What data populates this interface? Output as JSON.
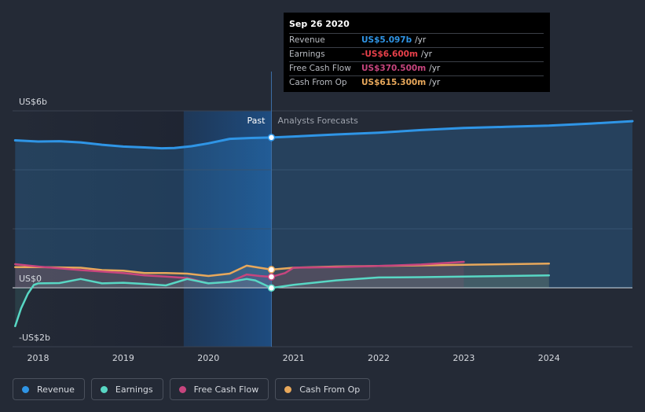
{
  "chart_data": {
    "type": "line",
    "x_axis": {
      "ticks": [
        "2018",
        "2019",
        "2020",
        "2021",
        "2022",
        "2023",
        "2024"
      ],
      "range": [
        2017.7,
        2024.98
      ]
    },
    "y_axis": {
      "range": [
        -2,
        6
      ],
      "unit": "US$ billions",
      "tick_labels": [
        {
          "value": 6,
          "label": "US$6b"
        },
        {
          "value": 0,
          "label": "US$0"
        },
        {
          "value": -2,
          "label": "-US$2b"
        }
      ]
    },
    "past_label": "Past",
    "forecast_label": "Analysts Forecasts",
    "divider_x": 2020.74,
    "series": [
      {
        "name": "Revenue",
        "color": "#2f95e6",
        "fill": true,
        "points": [
          [
            2017.73,
            5.0
          ],
          [
            2018.0,
            4.96
          ],
          [
            2018.25,
            4.97
          ],
          [
            2018.5,
            4.93
          ],
          [
            2018.75,
            4.85
          ],
          [
            2019.0,
            4.79
          ],
          [
            2019.25,
            4.76
          ],
          [
            2019.45,
            4.73
          ],
          [
            2019.6,
            4.74
          ],
          [
            2019.8,
            4.8
          ],
          [
            2020.0,
            4.9
          ],
          [
            2020.25,
            5.05
          ],
          [
            2020.5,
            5.08
          ],
          [
            2020.74,
            5.097
          ],
          [
            2021.0,
            5.13
          ],
          [
            2021.5,
            5.2
          ],
          [
            2022.0,
            5.26
          ],
          [
            2022.5,
            5.35
          ],
          [
            2023.0,
            5.42
          ],
          [
            2023.5,
            5.46
          ],
          [
            2024.0,
            5.5
          ],
          [
            2024.5,
            5.57
          ],
          [
            2024.98,
            5.65
          ]
        ]
      },
      {
        "name": "Earnings",
        "color": "#58d7c4",
        "fill": true,
        "points": [
          [
            2017.73,
            -1.3
          ],
          [
            2017.8,
            -0.7
          ],
          [
            2017.88,
            -0.2
          ],
          [
            2017.95,
            0.1
          ],
          [
            2018.0,
            0.15
          ],
          [
            2018.25,
            0.16
          ],
          [
            2018.5,
            0.3
          ],
          [
            2018.75,
            0.15
          ],
          [
            2019.0,
            0.17
          ],
          [
            2019.25,
            0.13
          ],
          [
            2019.5,
            0.08
          ],
          [
            2019.75,
            0.3
          ],
          [
            2020.0,
            0.15
          ],
          [
            2020.25,
            0.2
          ],
          [
            2020.45,
            0.3
          ],
          [
            2020.55,
            0.25
          ],
          [
            2020.74,
            -0.0066
          ],
          [
            2021.0,
            0.1
          ],
          [
            2021.5,
            0.25
          ],
          [
            2022.0,
            0.35
          ],
          [
            2022.5,
            0.36
          ],
          [
            2023.0,
            0.38
          ],
          [
            2023.5,
            0.4
          ],
          [
            2024.0,
            0.42
          ]
        ]
      },
      {
        "name": "Free Cash Flow",
        "color": "#c7457e",
        "fill": true,
        "points": [
          [
            2017.73,
            0.8
          ],
          [
            2018.0,
            0.72
          ],
          [
            2018.5,
            0.6
          ],
          [
            2018.75,
            0.55
          ],
          [
            2019.0,
            0.5
          ],
          [
            2019.25,
            0.42
          ],
          [
            2019.5,
            0.38
          ],
          [
            2019.75,
            0.33
          ],
          [
            2020.0,
            0.15
          ],
          [
            2020.25,
            0.2
          ],
          [
            2020.45,
            0.45
          ],
          [
            2020.6,
            0.4
          ],
          [
            2020.74,
            0.3705
          ],
          [
            2020.9,
            0.5
          ],
          [
            2021.0,
            0.68
          ],
          [
            2021.5,
            0.7
          ],
          [
            2022.0,
            0.74
          ],
          [
            2022.5,
            0.79
          ],
          [
            2023.0,
            0.88
          ]
        ]
      },
      {
        "name": "Cash From Op",
        "color": "#e8a85b",
        "fill": true,
        "points": [
          [
            2017.73,
            0.7
          ],
          [
            2018.0,
            0.7
          ],
          [
            2018.5,
            0.68
          ],
          [
            2018.75,
            0.6
          ],
          [
            2019.0,
            0.58
          ],
          [
            2019.25,
            0.5
          ],
          [
            2019.5,
            0.5
          ],
          [
            2019.75,
            0.48
          ],
          [
            2020.0,
            0.4
          ],
          [
            2020.25,
            0.48
          ],
          [
            2020.45,
            0.75
          ],
          [
            2020.6,
            0.68
          ],
          [
            2020.74,
            0.6153
          ],
          [
            2021.0,
            0.68
          ],
          [
            2021.5,
            0.72
          ],
          [
            2022.0,
            0.74
          ],
          [
            2022.5,
            0.76
          ],
          [
            2023.0,
            0.78
          ],
          [
            2023.5,
            0.8
          ],
          [
            2024.0,
            0.82
          ]
        ]
      }
    ],
    "highlight": {
      "x": 2020.74,
      "values": [
        5.097,
        -0.0066,
        0.3705,
        0.6153
      ]
    }
  },
  "tooltip": {
    "date": "Sep 26 2020",
    "rows": [
      {
        "label": "Revenue",
        "value": "US$5.097b",
        "unit": "/yr",
        "color": "#2f95e6"
      },
      {
        "label": "Earnings",
        "value": "-US$6.600m",
        "unit": "/yr",
        "color": "#e8404a"
      },
      {
        "label": "Free Cash Flow",
        "value": "US$370.500m",
        "unit": "/yr",
        "color": "#c7457e"
      },
      {
        "label": "Cash From Op",
        "value": "US$615.300m",
        "unit": "/yr",
        "color": "#e8a85b"
      }
    ]
  },
  "legend": [
    {
      "label": "Revenue",
      "color": "#2f95e6"
    },
    {
      "label": "Earnings",
      "color": "#58d7c4"
    },
    {
      "label": "Free Cash Flow",
      "color": "#c7457e"
    },
    {
      "label": "Cash From Op",
      "color": "#e8a85b"
    }
  ]
}
